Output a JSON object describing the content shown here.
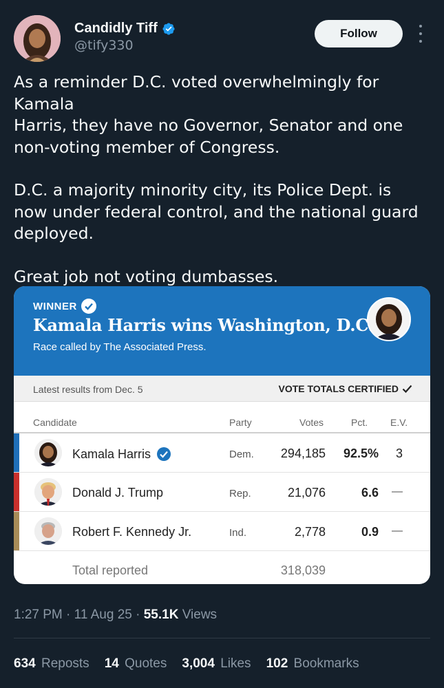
{
  "author": {
    "display_name": "Candidly Tiff",
    "handle": "@tify330",
    "verified_icon": "verified-badge-icon"
  },
  "follow_label": "Follow",
  "tweet": {
    "paragraphs": [
      "As a reminder D.C. voted overwhelmingly for Kamala\nHarris, they have no Governor, Senator and one\nnon-voting member of Congress.",
      "D.C. a majority minority city, its Police Dept. is\nnow under federal control, and the national guard\ndeployed.",
      "Great job not voting dumbasses."
    ]
  },
  "card": {
    "winner_label": "WINNER",
    "headline": "Kamala Harris wins Washington, D.C.",
    "subhead": "Race called by The Associated Press.",
    "latest_results": "Latest results from Dec. 5",
    "certified_label": "VOTE TOTALS CERTIFIED",
    "columns": {
      "candidate": "Candidate",
      "party": "Party",
      "votes": "Votes",
      "pct": "Pct.",
      "ev": "E.V."
    },
    "rows": [
      {
        "name": "Kamala Harris",
        "party": "Dem.",
        "votes": "294,185",
        "pct": "92.5%",
        "ev": "3",
        "color": "#1f6fb8"
      },
      {
        "name": "Donald J. Trump",
        "party": "Rep.",
        "votes": "21,076",
        "pct": "6.6",
        "ev": "—",
        "color": "#c9302c"
      },
      {
        "name": "Robert F. Kennedy Jr.",
        "party": "Ind.",
        "votes": "2,778",
        "pct": "0.9",
        "ev": "—",
        "color": "#a88c58"
      }
    ],
    "total_label": "Total reported",
    "total_votes": "318,039"
  },
  "meta": {
    "time": "1:27 PM",
    "date": "11 Aug 25",
    "views_count": "55.1K",
    "views_label": "Views"
  },
  "stats": [
    {
      "count": "634",
      "label": "Reposts"
    },
    {
      "count": "14",
      "label": "Quotes"
    },
    {
      "count": "3,004",
      "label": "Likes"
    },
    {
      "count": "102",
      "label": "Bookmarks"
    }
  ],
  "colors": {
    "background": "#15202b",
    "card_header": "#1d74bd",
    "verified_blue": "#1d9bf0"
  }
}
